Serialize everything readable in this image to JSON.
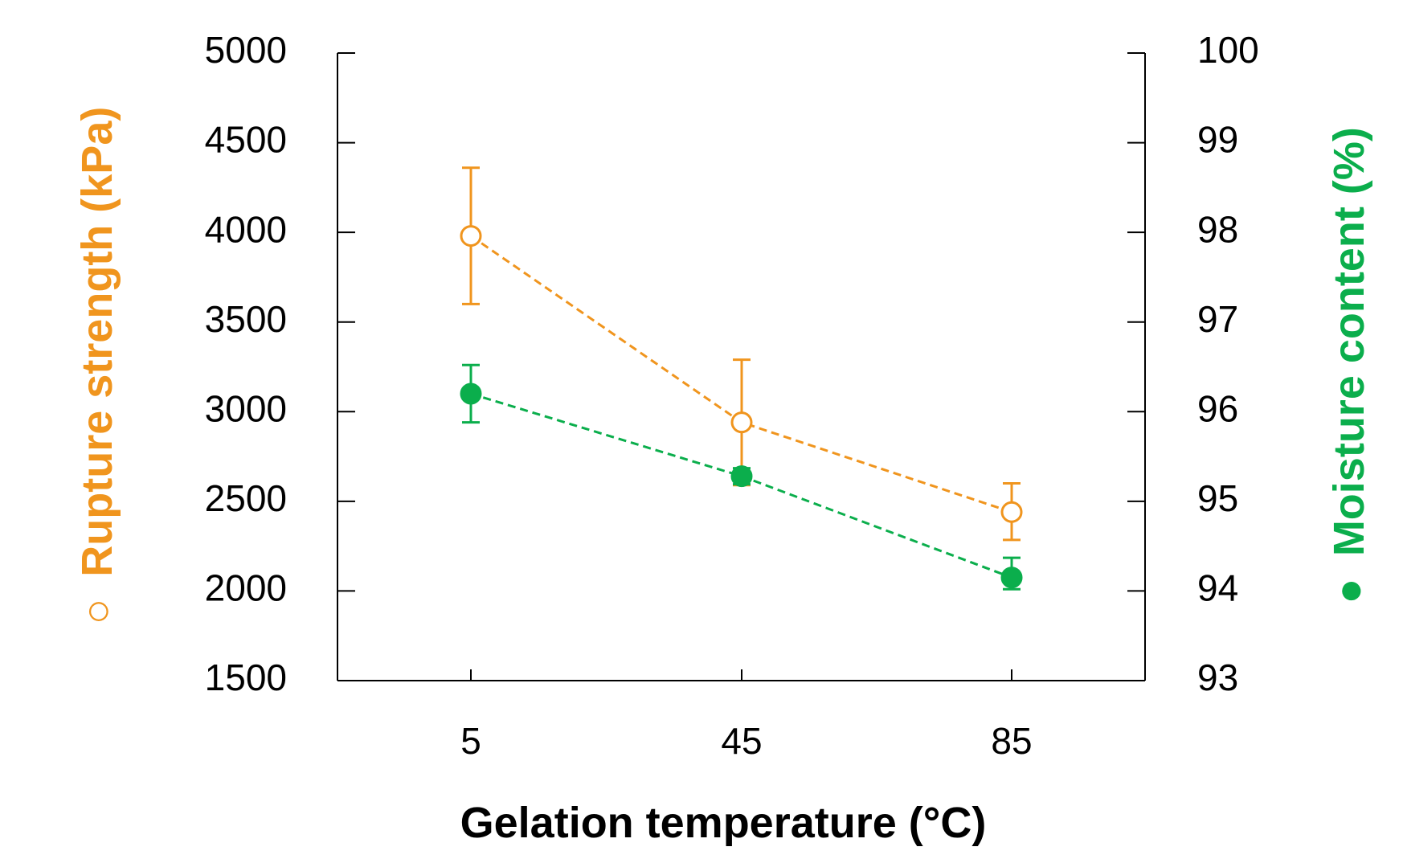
{
  "chart_data": {
    "type": "line",
    "title": "",
    "xlabel": "Gelation temperature (°C)",
    "categories": [
      "5",
      "45",
      "85"
    ],
    "x": [
      5,
      45,
      85
    ],
    "ylabel_left": "Rupture strength (kPa)",
    "ylabel_right": "Moisture content (%)",
    "ylim_left": [
      1500,
      5000
    ],
    "ylim_right": [
      93,
      100
    ],
    "yticks_left": [
      "1500",
      "2000",
      "2500",
      "3000",
      "3500",
      "4000",
      "4500",
      "5000"
    ],
    "yticks_right": [
      "93",
      "94",
      "95",
      "96",
      "97",
      "98",
      "99",
      "100"
    ],
    "grid": false,
    "series": [
      {
        "name": "Rupture strength",
        "axis": "left",
        "marker": "open-circle",
        "marker_symbol": "○",
        "color": "#F0951E",
        "line_style": "dashed",
        "values": [
          3980,
          2940,
          2440
        ],
        "error": [
          [
            380,
            380
          ],
          [
            350,
            350
          ],
          [
            155,
            160
          ]
        ]
      },
      {
        "name": "Moisture content",
        "axis": "right",
        "marker": "filled-circle",
        "marker_symbol": "●",
        "color": "#0BAE4C",
        "line_style": "dashed",
        "values": [
          96.2,
          95.28,
          94.15
        ],
        "error": [
          [
            0.32,
            0.32
          ],
          [
            0.09,
            0.09
          ],
          [
            0.13,
            0.22
          ]
        ]
      }
    ]
  }
}
